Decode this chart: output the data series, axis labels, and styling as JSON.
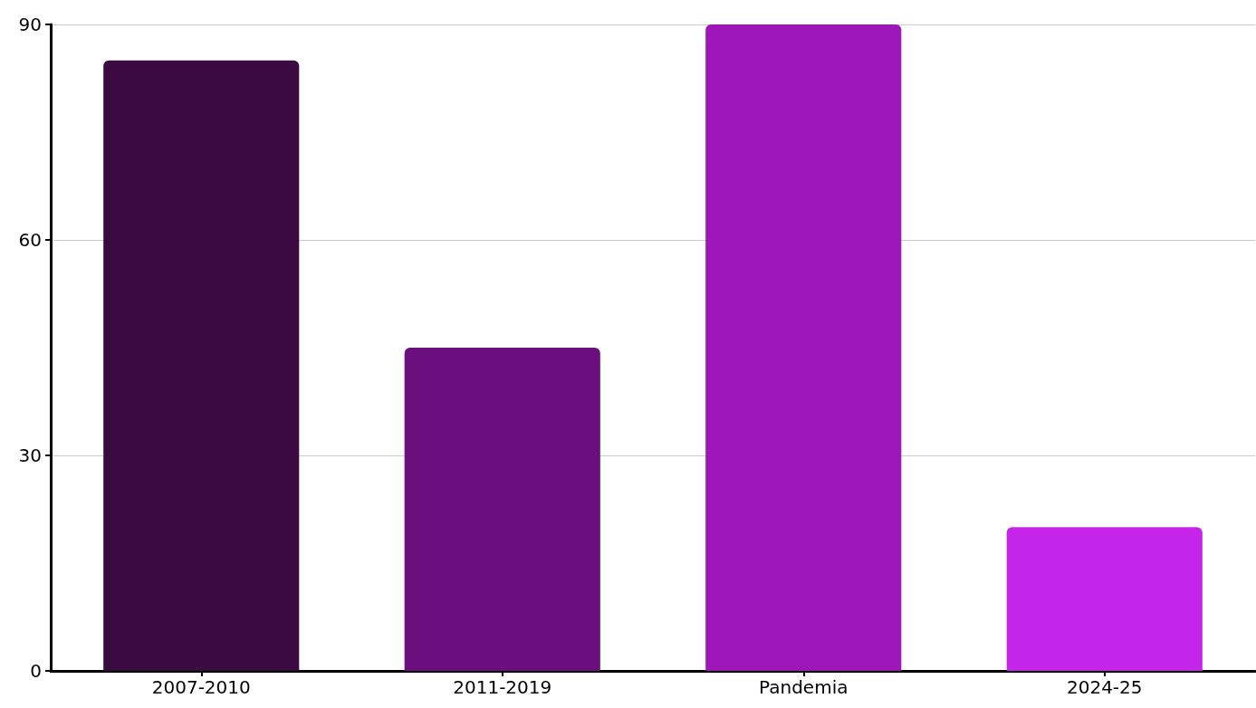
{
  "chart_data": {
    "type": "bar",
    "categories": [
      "2007-2010",
      "2011-2019",
      "Pandemia",
      "2024-25"
    ],
    "values": [
      85,
      45,
      90,
      20
    ],
    "colors": [
      "#3b0a40",
      "#6a0f7d",
      "#9b17b8",
      "#c425e8"
    ],
    "ylim": [
      0,
      90
    ],
    "yticks": [
      0,
      30,
      60,
      90
    ],
    "grid": "y"
  }
}
